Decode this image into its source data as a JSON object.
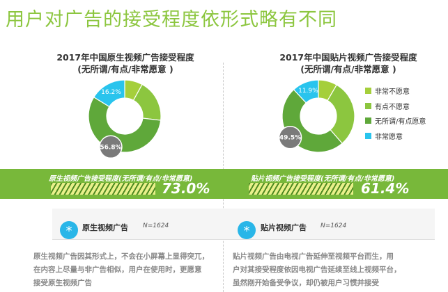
{
  "page_title": "用户对广告的接受程度依形式略有不同",
  "legend": [
    {
      "label": "非常不愿意",
      "color": "#a5cf3b"
    },
    {
      "label": "有点不愿意",
      "color": "#8cc63f"
    },
    {
      "label": "无所谓/有点愿意",
      "color": "#5fa83a"
    },
    {
      "label": "非常愿意",
      "color": "#29c4ed"
    }
  ],
  "chart_data": [
    {
      "type": "pie",
      "title_line1": "2017年中国原生视频广告接受程度",
      "title_line2": "(无所谓/有点/非常愿意 )",
      "categories": [
        "非常不愿意",
        "有点不愿意",
        "无所谓/有点愿意",
        "非常愿意"
      ],
      "values": [
        8.0,
        18.8,
        56.8,
        16.2
      ],
      "data_labels": {
        "非常愿意": "16.2%",
        "无所谓/有点愿意": "56.8%"
      },
      "colors": [
        "#a5cf3b",
        "#8cc63f",
        "#5fa83a",
        "#29c4ed"
      ]
    },
    {
      "type": "pie",
      "title_line1": "2017年中国贴片视频广告接受程度",
      "title_line2": "(无所谓/有点/非常愿意 )",
      "categories": [
        "非常不愿意",
        "有点不愿意",
        "无所谓/有点愿意",
        "非常愿意"
      ],
      "values": [
        8.4,
        30.2,
        49.5,
        11.9
      ],
      "data_labels": {
        "非常愿意": "11.9%",
        "无所谓/有点愿意": "49.5%"
      },
      "colors": [
        "#a5cf3b",
        "#8cc63f",
        "#5fa83a",
        "#29c4ed"
      ]
    }
  ],
  "band": {
    "left_label": "原生视频广告接受程度(无所谓/有点/非常愿意)",
    "left_value": "73.0%",
    "right_label": "贴片视频广告接受程度(无所谓/有点/非常愿意)",
    "right_value": "61.4%"
  },
  "panels": {
    "left": {
      "title": "原生视频广告",
      "n": "N=1624",
      "desc": [
        "原生视频广告因其形式上，不会在小屏幕上显得突兀，",
        "在内容上尽量与非广告相似，用户在使用时，更愿意",
        "接受原生视频广告"
      ]
    },
    "right": {
      "title": "贴片视频广告",
      "n": "N=1624",
      "desc": [
        "贴片视频广告由电视广告延伸至视频平台而生，用",
        "户对其接受程度依因电视广告延续至线上视频平台，",
        "虽然刚开始备受争议，却仍被用户习惯并接受"
      ]
    }
  }
}
